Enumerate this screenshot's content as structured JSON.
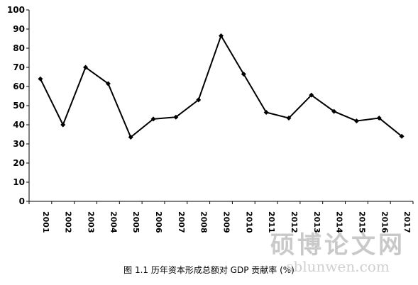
{
  "chart_data": {
    "type": "line",
    "title": "",
    "xlabel": "",
    "ylabel": "",
    "categories": [
      "2001",
      "2002",
      "2003",
      "2004",
      "2005",
      "2006",
      "2007",
      "2008",
      "2009",
      "2010",
      "2011",
      "2012",
      "2013",
      "2014",
      "2015",
      "2016",
      "2017"
    ],
    "series": [
      {
        "values": [
          64,
          40,
          70,
          61.5,
          33.5,
          43,
          44,
          53,
          86.5,
          66.5,
          46.5,
          43.5,
          55.5,
          47,
          42,
          43.5,
          34
        ]
      }
    ],
    "ylim": [
      0,
      100
    ],
    "yticks": [
      0,
      10,
      20,
      30,
      40,
      50,
      60,
      70,
      80,
      90,
      100
    ],
    "grid": false,
    "legend": "none",
    "line_color": "#000000"
  },
  "caption": "图 1.1 历年资本形成总额对 GDP 贡献率 (%)",
  "watermark": {
    "text": "硕博论文网",
    "url": "sblunwen.com"
  }
}
